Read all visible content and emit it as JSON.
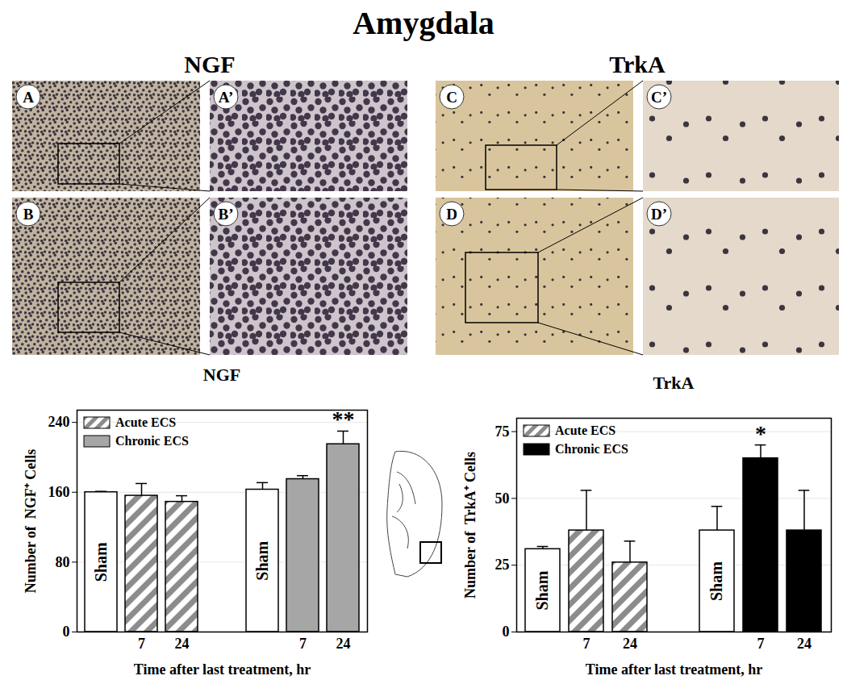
{
  "title": "Amygdala",
  "image_panels": [
    {
      "title": "NGF",
      "labels": [
        [
          "A",
          "A’"
        ],
        [
          "B",
          "B’"
        ]
      ]
    },
    {
      "title": "TrkA",
      "labels": [
        [
          "C",
          "C’"
        ],
        [
          "D",
          "D’"
        ]
      ]
    }
  ],
  "chart_data": [
    {
      "type": "bar",
      "title": "NGF",
      "ylabel": "Number of  NGF⁺ Cells",
      "xlabel": "Time after last treatment, hr",
      "categories": [
        null,
        "7",
        "24",
        null,
        null,
        "7",
        "24"
      ],
      "ylim": [
        0,
        254
      ],
      "yticks": [
        0,
        80,
        160,
        240
      ],
      "grid": true,
      "legend": "top-left",
      "series": [
        {
          "name": "Acute ECS",
          "color": "#8c8c8c",
          "marker": "hatch",
          "colors": [
            "#ffffff",
            "#8c8c8c",
            "#8c8c8c",
            null,
            null,
            null,
            null
          ],
          "values": [
            160,
            156,
            149,
            null,
            null,
            null,
            null
          ],
          "errors": [
            1,
            14,
            7,
            null,
            null,
            null,
            null
          ],
          "bar_labels": [
            "Sham",
            null,
            null,
            null,
            null,
            null,
            null
          ],
          "significance": [
            null,
            null,
            null,
            null,
            null,
            null,
            null
          ]
        },
        {
          "name": "Chronic ECS",
          "color": "#a6a6a6",
          "colors": [
            null,
            null,
            null,
            null,
            "#ffffff",
            "#a6a6a6",
            "#a6a6a6"
          ],
          "values": [
            null,
            null,
            null,
            null,
            163,
            175,
            215
          ],
          "errors": [
            null,
            null,
            null,
            null,
            8,
            4,
            15
          ],
          "bar_labels": [
            null,
            null,
            null,
            null,
            "Sham",
            null,
            null
          ],
          "significance": [
            null,
            null,
            null,
            null,
            null,
            null,
            "**"
          ]
        }
      ]
    },
    {
      "type": "bar",
      "title": "TrkA",
      "ylabel": "Number of  TrkA⁺ Cells",
      "xlabel": "Time after last treatment, hr",
      "categories": [
        null,
        "7",
        "24",
        null,
        null,
        "7",
        "24"
      ],
      "ylim": [
        0,
        80
      ],
      "yticks": [
        0,
        25,
        50,
        75
      ],
      "grid": true,
      "legend": "top-left",
      "series": [
        {
          "name": "Acute ECS",
          "color": "#8c8c8c",
          "marker": "hatch",
          "colors": [
            "#ffffff",
            "#8c8c8c",
            "#8c8c8c",
            null,
            null,
            null,
            null
          ],
          "values": [
            31,
            38,
            26,
            null,
            null,
            null,
            null
          ],
          "errors": [
            1,
            15,
            8,
            null,
            null,
            null,
            null
          ],
          "bar_labels": [
            "Sham",
            null,
            null,
            null,
            null,
            null,
            null
          ],
          "significance": [
            null,
            null,
            null,
            null,
            null,
            null,
            null
          ]
        },
        {
          "name": "Chronic ECS",
          "color": "#000000",
          "colors": [
            null,
            null,
            null,
            null,
            "#ffffff",
            "#000000",
            "#000000"
          ],
          "values": [
            null,
            null,
            null,
            null,
            38,
            65,
            38
          ],
          "errors": [
            null,
            null,
            null,
            null,
            9,
            5,
            15
          ],
          "bar_labels": [
            null,
            null,
            null,
            null,
            "Sham",
            null,
            null
          ],
          "significance": [
            null,
            null,
            null,
            null,
            null,
            "*",
            null
          ]
        }
      ]
    }
  ]
}
